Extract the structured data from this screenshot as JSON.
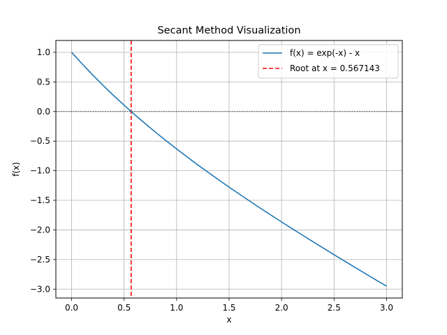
{
  "chart_data": {
    "type": "line",
    "title": "Secant Method Visualization",
    "xlabel": "x",
    "ylabel": "f(x)",
    "xlim": [
      -0.15,
      3.15
    ],
    "ylim": [
      -3.15,
      1.2
    ],
    "grid": true,
    "legend_position": "top-right",
    "x_ticks": [
      0.0,
      0.5,
      1.0,
      1.5,
      2.0,
      2.5,
      3.0
    ],
    "x_tick_labels": [
      "0.0",
      "0.5",
      "1.0",
      "1.5",
      "2.0",
      "2.5",
      "3.0"
    ],
    "y_ticks": [
      1.0,
      0.5,
      0.0,
      -0.5,
      -1.0,
      -1.5,
      -2.0,
      -2.5,
      -3.0
    ],
    "y_tick_labels": [
      "1.0",
      "0.5",
      "0.0",
      "−0.5",
      "−1.0",
      "−1.5",
      "−2.0",
      "−2.5",
      "−3.0"
    ],
    "series": [
      {
        "name": "f(x) = exp(-x) - x",
        "color": "#1f77b4",
        "style": "solid",
        "x": [
          0,
          0.1,
          0.2,
          0.3,
          0.4,
          0.5,
          0.6,
          0.7,
          0.8,
          0.9,
          1.0,
          1.1,
          1.2,
          1.3,
          1.4,
          1.5,
          1.6,
          1.7,
          1.8,
          1.9,
          2.0,
          2.1,
          2.2,
          2.3,
          2.4,
          2.5,
          2.6,
          2.7,
          2.8,
          2.9,
          3.0
        ],
        "y": [
          1.0,
          0.805,
          0.619,
          0.441,
          0.27,
          0.107,
          -0.051,
          -0.203,
          -0.351,
          -0.493,
          -0.632,
          -0.767,
          -0.899,
          -1.027,
          -1.153,
          -1.277,
          -1.398,
          -1.517,
          -1.635,
          -1.75,
          -1.865,
          -1.978,
          -2.089,
          -2.2,
          -2.309,
          -2.418,
          -2.526,
          -2.633,
          -2.739,
          -2.845,
          -2.95
        ]
      }
    ],
    "reference_lines": [
      {
        "orientation": "vertical",
        "x": 0.567143,
        "name": "Root at x = 0.567143",
        "color": "#ff0000",
        "style": "dashed"
      },
      {
        "orientation": "horizontal",
        "y": 0,
        "color": "#000000",
        "style": "dashed"
      }
    ]
  }
}
